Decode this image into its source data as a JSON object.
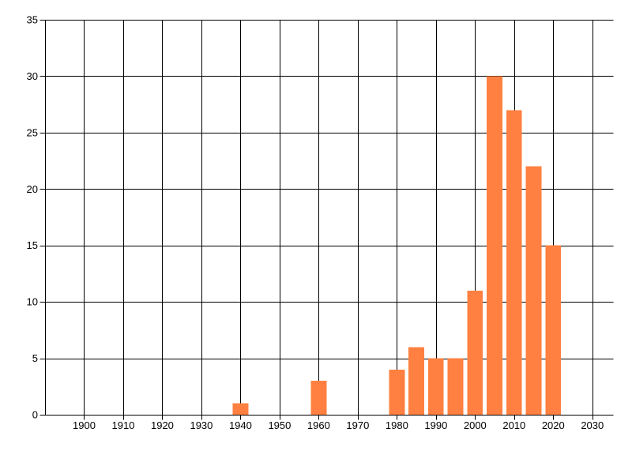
{
  "page": {
    "background": "#ffffff"
  },
  "chart_data": {
    "type": "bar",
    "x": [
      1940,
      1960,
      1980,
      1985,
      1990,
      1995,
      2000,
      2005,
      2010,
      2015,
      2020
    ],
    "values": [
      1,
      3,
      4,
      6,
      5,
      5,
      11,
      30,
      27,
      22,
      15
    ],
    "bar_width_years": 4,
    "title": "",
    "xlabel": "",
    "ylabel": "",
    "xlim": [
      1890,
      2035.3
    ],
    "ylim": [
      0,
      35
    ],
    "x_ticks": [
      1900,
      1910,
      1920,
      1930,
      1940,
      1950,
      1960,
      1970,
      1980,
      1990,
      2000,
      2010,
      2020,
      2030
    ],
    "y_ticks": [
      0,
      5,
      10,
      15,
      20,
      25,
      30,
      35
    ],
    "grid": true,
    "legend": null,
    "colors": {
      "bar": "#FF8040",
      "grid": "#000000",
      "axis": "#000000",
      "text": "#000000",
      "background": "#ffffff"
    }
  }
}
